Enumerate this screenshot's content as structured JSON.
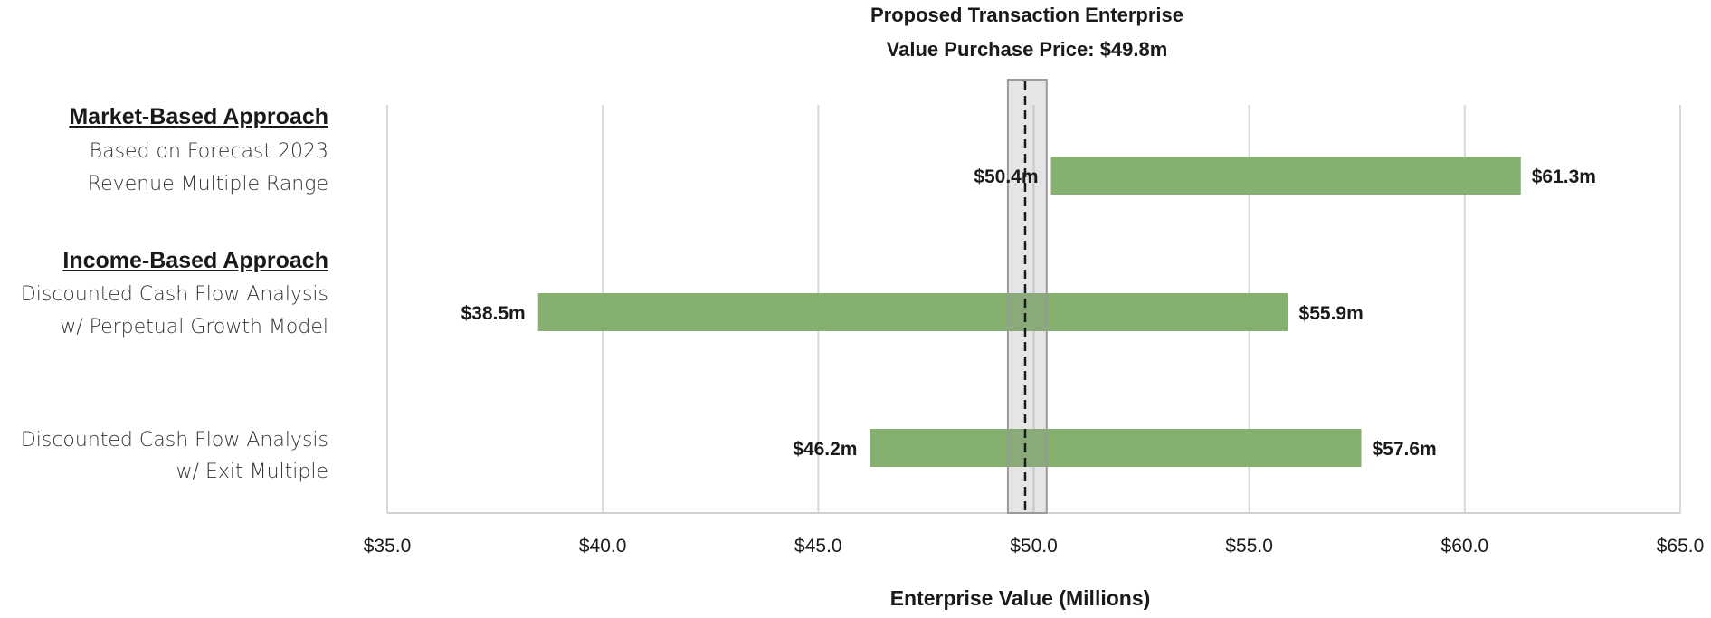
{
  "chart_data": {
    "type": "range_bar",
    "title_line1": "Proposed Transaction Enterprise",
    "title_line2": "Value Purchase Price: $49.8m",
    "xlabel": "Enterprise Value (Millions)",
    "xlim": [
      35.0,
      65.0
    ],
    "xticks": [
      35.0,
      40.0,
      45.0,
      50.0,
      55.0,
      60.0,
      65.0
    ],
    "tick_labels": [
      "$35.0",
      "$40.0",
      "$45.0",
      "$50.0",
      "$55.0",
      "$60.0",
      "$65.0"
    ],
    "grid": true,
    "bar_color": "#86b06f",
    "reference_line": {
      "value": 49.8,
      "band": [
        49.4,
        50.3
      ]
    },
    "categories": [
      {
        "group": "Market-Based Approach",
        "label_line1": "Based on Forecast 2023",
        "label_line2": "Revenue Multiple Range",
        "low": 50.4,
        "high": 61.3,
        "low_label": "$50.4m",
        "high_label": "$61.3m"
      },
      {
        "group": "Income-Based Approach",
        "label_line1": "Discounted Cash Flow Analysis",
        "label_line2": "w/ Perpetual Growth Model",
        "low": 38.5,
        "high": 55.9,
        "low_label": "$38.5m",
        "high_label": "$55.9m"
      },
      {
        "group": "",
        "label_line1": "Discounted Cash Flow Analysis",
        "label_line2": "w/ Exit Multiple",
        "low": 46.2,
        "high": 57.6,
        "low_label": "$46.2m",
        "high_label": "$57.6m"
      }
    ]
  }
}
